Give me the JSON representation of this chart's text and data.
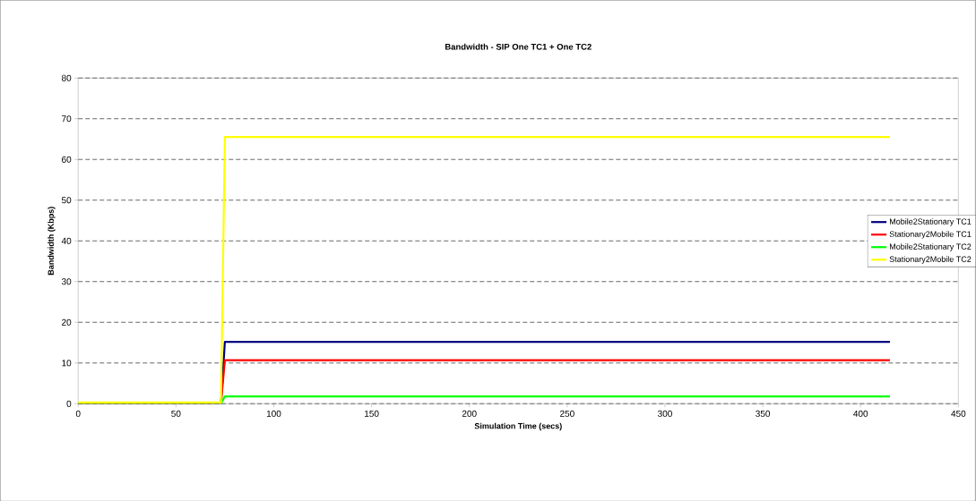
{
  "chart_data": {
    "type": "line",
    "title": "Bandwidth - SIP One TC1 + One TC2",
    "xlabel": "Simulation Time (secs)",
    "ylabel": "Bandwidth (Kbps)",
    "x": [
      0,
      73,
      75,
      415
    ],
    "series": [
      {
        "name": "Mobile2Stationary TC1",
        "color": "#000080",
        "values": [
          0,
          0,
          15.2,
          15.2
        ]
      },
      {
        "name": "Stationary2Mobile TC1",
        "color": "#ff0000",
        "values": [
          0,
          0,
          10.7,
          10.7
        ]
      },
      {
        "name": "Mobile2Stationary TC2",
        "color": "#00ff00",
        "values": [
          0,
          0,
          1.8,
          1.8
        ]
      },
      {
        "name": "Stationary2Mobile TC2",
        "color": "#ffff00",
        "values": [
          0.3,
          0.3,
          65.5,
          65.5
        ]
      }
    ],
    "xlim": [
      0,
      450
    ],
    "xticks": [
      0,
      50,
      100,
      150,
      200,
      250,
      300,
      350,
      400,
      450
    ],
    "ylim": [
      0,
      80
    ],
    "yticks": [
      0,
      10,
      20,
      30,
      40,
      50,
      60,
      70,
      80
    ],
    "grid": "y",
    "legend": "right",
    "marker": "none",
    "line_style": "solid"
  }
}
